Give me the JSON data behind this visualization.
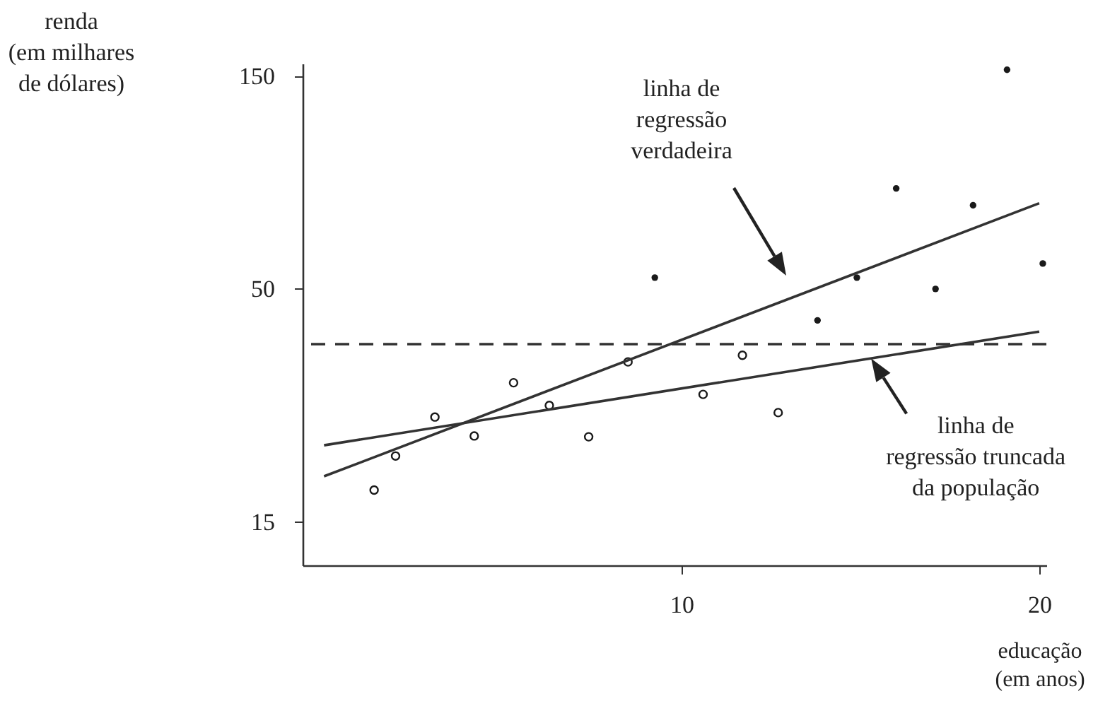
{
  "chart_data": {
    "type": "scatter",
    "xlabel": "educação (em anos)",
    "ylabel": "renda (em milhares de dólares)",
    "xlim": [
      -0.6,
      20.2
    ],
    "xticks": [
      10,
      20
    ],
    "ylim": [
      12,
      160
    ],
    "yticks": [
      15,
      50,
      150
    ],
    "log": "y",
    "grid": false,
    "series": [
      {
        "color": "#1a1a1a",
        "marker": "circle",
        "x": [
          9.25,
          16.0,
          18.15,
          20.1,
          14.9,
          17.1,
          13.8,
          19.1
        ],
        "values": [
          53,
          84,
          77,
          57,
          53,
          50,
          42.5,
          155
        ]
      },
      {
        "color": "#1a1a1a",
        "marker": "circle",
        "x": [
          1.4,
          2.0,
          3.1,
          4.2,
          5.3,
          6.3,
          7.4,
          8.5,
          10.6,
          11.7,
          12.7
        ],
        "values": [
          17.7,
          21.1,
          25.8,
          23.4,
          30.8,
          27.4,
          23.3,
          34.3,
          29.0,
          35.5,
          26.4
        ]
      },
      {
        "type": "line",
        "color": "#333333",
        "x": [
          0,
          20
        ],
        "values": [
          19.0,
          77.8
        ]
      },
      {
        "type": "line",
        "color": "#333333",
        "x": [
          0,
          20
        ],
        "values": [
          22.3,
          40.1
        ]
      }
    ],
    "ref_lines": [
      {
        "axis": "y",
        "value": 37.6,
        "color": "#333333",
        "line_style": "dashed"
      }
    ],
    "annotations": [
      "linha de regressão verdadeira",
      {
        "text": "linha de regressão truncada da população",
        "x": 15.3,
        "y": 34.9
      }
    ]
  }
}
